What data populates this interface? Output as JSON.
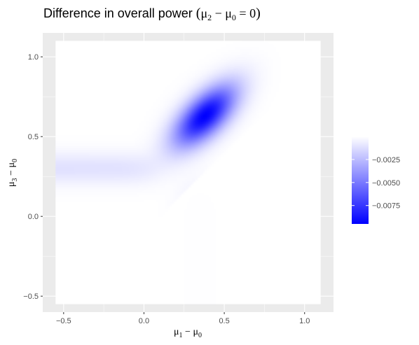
{
  "chart_data": {
    "type": "heatmap",
    "title": {
      "prefix": "Difference in overall power ",
      "math": {
        "open": "(",
        "mu_a": "μ",
        "sub_a": "2",
        "minus": " − ",
        "mu_b": "μ",
        "sub_b": "0",
        "equals": " = 0",
        "close": ")"
      }
    },
    "xlabel": {
      "mu_a": "μ",
      "sub_a": "1",
      "minus": " − ",
      "mu_b": "μ",
      "sub_b": "0"
    },
    "ylabel": {
      "mu_a": "μ",
      "sub_a": "3",
      "minus": " − ",
      "mu_b": "μ",
      "sub_b": "0"
    },
    "x_range": [
      -0.55,
      1.1
    ],
    "y_range": [
      -0.55,
      1.1
    ],
    "xlim": [
      -0.63,
      1.18
    ],
    "ylim": [
      -0.6,
      1.15
    ],
    "x_ticks": [
      -0.5,
      0.0,
      0.5,
      1.0
    ],
    "x_tick_labels": [
      "−0.5",
      "0.0",
      "0.5",
      "1.0"
    ],
    "y_ticks": [
      -0.5,
      0.0,
      0.5,
      1.0
    ],
    "y_tick_labels": [
      "−0.5",
      "0.0",
      "0.5",
      "1.0"
    ],
    "grid": true,
    "colors": {
      "low": "#0000ff",
      "high": "#ffffff",
      "panel": "#ebebeb",
      "gridline": "#ffffff"
    },
    "fill_range": [
      -0.0095,
      0.0
    ],
    "legend": {
      "position": "right",
      "breaks": [
        -0.0025,
        -0.005,
        -0.0075
      ],
      "labels": [
        "−0.0025",
        "−0.0050",
        "−0.0075"
      ]
    },
    "features": [
      {
        "kind": "peak",
        "x": 0.38,
        "y": 0.63,
        "value": -0.0095,
        "note": "main blue blob"
      },
      {
        "kind": "boundary",
        "note": "white region below diagonal y = x - 0.1 for x in [0.1, 1.1]"
      },
      {
        "kind": "ridge",
        "orientation": "horizontal",
        "y": 0.3,
        "note": "faint purple band at left"
      },
      {
        "kind": "ridge",
        "orientation": "vertical",
        "x": 0.35,
        "note": "faint purple band at bottom"
      }
    ]
  }
}
